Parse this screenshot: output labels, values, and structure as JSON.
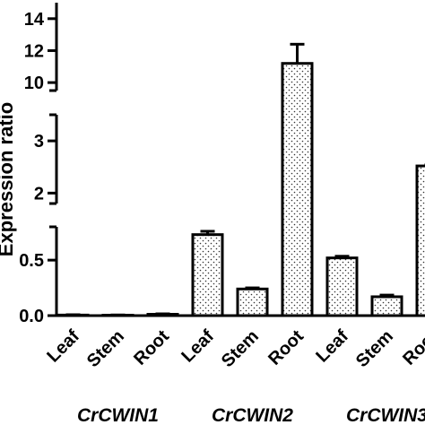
{
  "chart_data": {
    "type": "bar",
    "title": "",
    "ylabel": "Expression ratio",
    "xlabel": "",
    "axis_breaks": [
      [
        0.8,
        1.8
      ],
      [
        3.5,
        9.5
      ]
    ],
    "ylim": [
      0,
      15
    ],
    "y_ticks": [
      {
        "value": 0,
        "label": "0.0"
      },
      {
        "value": 0.5,
        "label": "0.5"
      },
      {
        "value": 2,
        "label": "2"
      },
      {
        "value": 3,
        "label": "3"
      },
      {
        "value": 10,
        "label": "10"
      },
      {
        "value": 12,
        "label": "12"
      },
      {
        "value": 14,
        "label": "14"
      }
    ],
    "groups": [
      {
        "name": "CrCWIN1",
        "categories": [
          "Leaf",
          "Stem",
          "Root"
        ],
        "values": [
          0.005,
          0.004,
          0.012
        ],
        "errors": [
          0.003,
          0.002,
          0.004
        ]
      },
      {
        "name": "CrCWIN2",
        "categories": [
          "Leaf",
          "Stem",
          "Root"
        ],
        "values": [
          0.73,
          0.24,
          11.2
        ],
        "errors": [
          0.03,
          0.01,
          1.2
        ]
      },
      {
        "name": "CrCWIN3",
        "categories": [
          "Leaf",
          "Stem",
          "Root"
        ],
        "values": [
          0.52,
          0.17,
          2.52
        ],
        "errors": [
          0.015,
          0.015,
          0.02
        ]
      }
    ],
    "colors": {
      "bar_fill": "#ffffff",
      "dots": "#333333",
      "stroke": "#000000"
    }
  }
}
